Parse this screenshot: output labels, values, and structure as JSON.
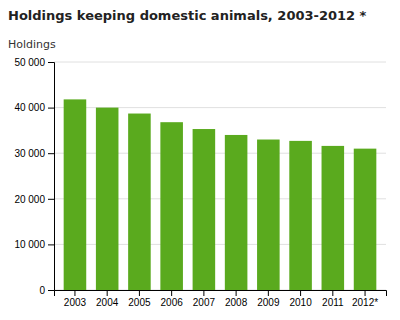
{
  "chart_data": {
    "type": "bar",
    "title": "Holdings keeping domestic animals, 2003-2012 *",
    "ylabel": "Holdings",
    "categories": [
      "2003",
      "2004",
      "2005",
      "2006",
      "2007",
      "2008",
      "2009",
      "2010",
      "2011",
      "2012*"
    ],
    "values": [
      41800,
      40000,
      38700,
      36800,
      35300,
      34000,
      33000,
      32700,
      31600,
      31000
    ],
    "color": "#5aaa1e",
    "ylim": [
      0,
      50000
    ],
    "yticks": [
      0,
      {
        "value": 10000,
        "label": "10 000"
      },
      {
        "value": 20000,
        "label": "20 000"
      },
      {
        "value": 30000,
        "label": "30 000"
      },
      {
        "value": 40000,
        "label": "40 000"
      },
      {
        "value": 50000,
        "label": "50 000"
      }
    ],
    "grid": true
  }
}
